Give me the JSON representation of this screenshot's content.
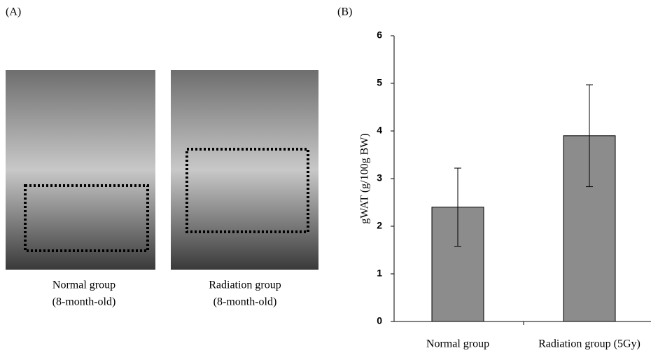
{
  "panel_a": {
    "label": "(A)",
    "captions": [
      [
        "Normal group",
        "(8-month-old)"
      ],
      [
        "Radiation group",
        "(8-month-old)"
      ]
    ]
  },
  "panel_b": {
    "label": "(B)"
  },
  "chart_data": {
    "type": "bar",
    "ylabel": "gWAT (g/100g BW)",
    "categories": [
      "Normal group",
      "Radiation group (5Gy)"
    ],
    "values": [
      2.4,
      3.9
    ],
    "errors": [
      0.82,
      1.07
    ],
    "color": "#8c8c8c",
    "ylim": [
      0,
      6
    ],
    "yticks": [
      0,
      1,
      2,
      3,
      4,
      5,
      6
    ],
    "grid": false
  }
}
